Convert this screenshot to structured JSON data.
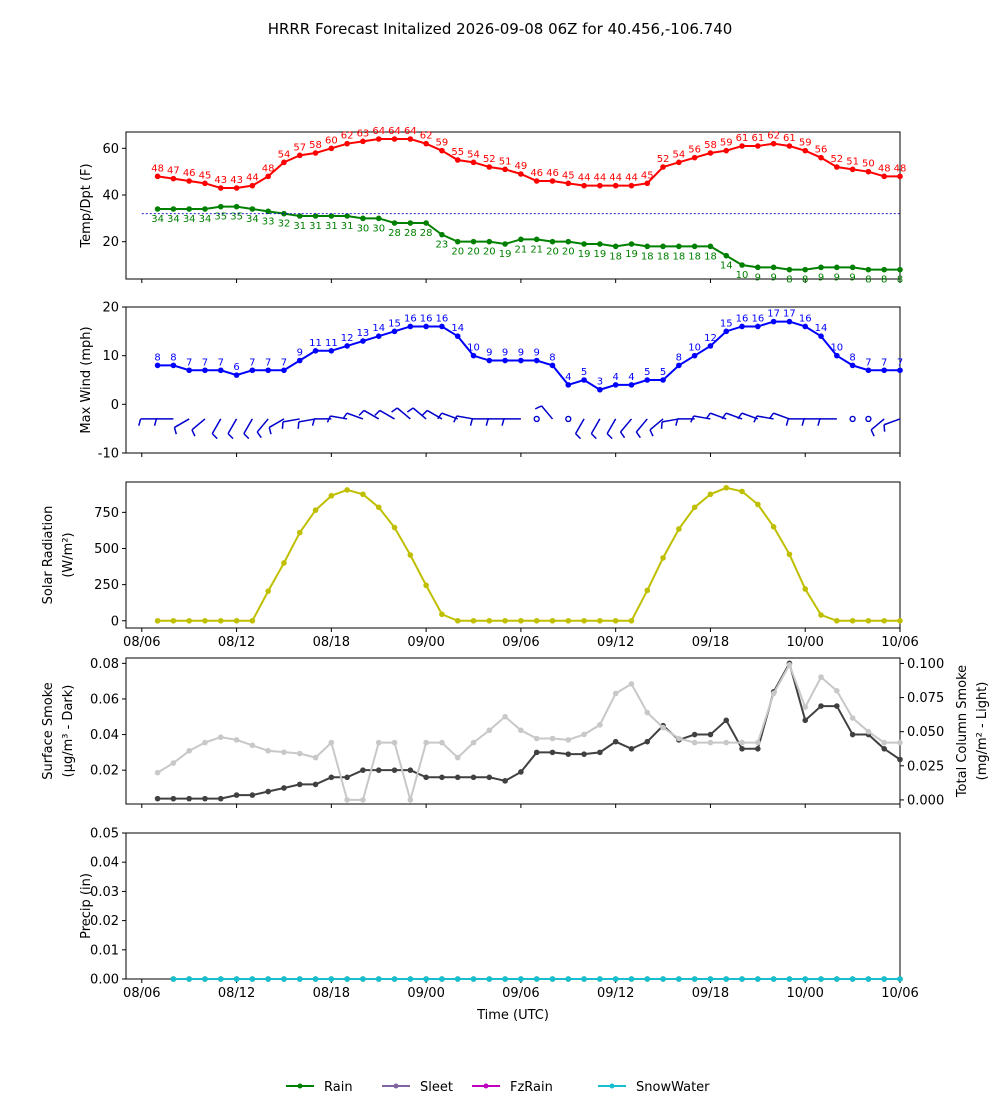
{
  "title": "HRRR Forecast Initalized 2026-09-08 06Z for 40.456,-106.740",
  "x_axis": {
    "tick_labels": [
      "08/06",
      "08/12",
      "08/18",
      "09/00",
      "09/06",
      "09/12",
      "09/18",
      "10/00",
      "10/06"
    ],
    "tick_hours": [
      0,
      6,
      12,
      18,
      24,
      30,
      36,
      42,
      48
    ],
    "label": "Time (UTC)",
    "range_hours": [
      -1,
      48
    ]
  },
  "legend": {
    "placement": "bottom-center",
    "items": [
      {
        "label": "Rain",
        "color": "#008000"
      },
      {
        "label": "Sleet",
        "color": "#8064a2"
      },
      {
        "label": "FzRain",
        "color": "#c000c0"
      },
      {
        "label": "SnowWater",
        "color": "#17becf"
      }
    ]
  },
  "chart_data": [
    {
      "type": "line",
      "ylabel": "Temp/Dpt (F)",
      "ylim": [
        4,
        67
      ],
      "yticks": [
        20,
        40,
        60
      ],
      "x_hours": [
        1,
        2,
        3,
        4,
        5,
        6,
        7,
        8,
        9,
        10,
        11,
        12,
        13,
        14,
        15,
        16,
        17,
        18,
        19,
        20,
        21,
        22,
        23,
        24,
        25,
        26,
        27,
        28,
        29,
        30,
        31,
        32,
        33,
        34,
        35,
        36,
        37,
        38,
        39,
        40,
        41,
        42,
        43,
        44,
        45,
        46,
        47,
        48
      ],
      "series": [
        {
          "name": "Temperature",
          "color": "#ff0000",
          "values": [
            48,
            47,
            46,
            45,
            43,
            43,
            44,
            48,
            54,
            57,
            58,
            60,
            62,
            63,
            64,
            64,
            64,
            62,
            59,
            55,
            54,
            52,
            51,
            49,
            46,
            46,
            45,
            44,
            44,
            44,
            44,
            45,
            52,
            54,
            56,
            58,
            59,
            61,
            61,
            62,
            61,
            59,
            56,
            52,
            51,
            50,
            48,
            48
          ]
        },
        {
          "name": "Dew Point",
          "color": "#008000",
          "values": [
            34,
            34,
            34,
            34,
            35,
            35,
            34,
            33,
            32,
            31,
            31,
            31,
            31,
            30,
            30,
            28,
            28,
            28,
            23,
            20,
            20,
            20,
            19,
            21,
            21,
            20,
            20,
            19,
            19,
            18,
            19,
            18,
            18,
            18,
            18,
            18,
            14,
            10,
            9,
            9,
            8,
            8,
            9,
            9,
            9,
            8,
            8,
            8
          ]
        },
        {
          "name": "Freezing",
          "color": "#0000cc",
          "values": [
            32,
            32
          ],
          "style": "dotted",
          "span_hours": [
            0,
            48
          ]
        }
      ]
    },
    {
      "type": "line",
      "ylabel": "Max Wind (mph)",
      "ylim": [
        -10,
        20
      ],
      "yticks": [
        -10,
        0,
        10,
        20
      ],
      "x_hours": [
        1,
        2,
        3,
        4,
        5,
        6,
        7,
        8,
        9,
        10,
        11,
        12,
        13,
        14,
        15,
        16,
        17,
        18,
        19,
        20,
        21,
        22,
        23,
        24,
        25,
        26,
        27,
        28,
        29,
        30,
        31,
        32,
        33,
        34,
        35,
        36,
        37,
        38,
        39,
        40,
        41,
        42,
        43,
        44,
        45,
        46,
        47,
        48
      ],
      "series": [
        {
          "name": "Max Wind",
          "color": "#0000ff",
          "values": [
            8,
            8,
            7,
            7,
            7,
            6,
            7,
            7,
            7,
            9,
            11,
            11,
            12,
            13,
            14,
            15,
            16,
            16,
            16,
            14,
            10,
            9,
            9,
            9,
            9,
            8,
            4,
            5,
            3,
            4,
            4,
            5,
            5,
            8,
            10,
            12,
            15,
            16,
            16,
            17,
            17,
            16,
            14,
            10,
            8,
            7,
            7,
            7
          ]
        }
      ],
      "wind_barbs": {
        "color": "#0000cc",
        "y": -3,
        "directions_deg": [
          270,
          270,
          240,
          230,
          210,
          210,
          210,
          220,
          240,
          260,
          260,
          270,
          280,
          290,
          300,
          300,
          310,
          310,
          300,
          290,
          280,
          270,
          270,
          270,
          null,
          320,
          null,
          210,
          210,
          210,
          220,
          220,
          230,
          260,
          270,
          280,
          290,
          290,
          290,
          280,
          290,
          270,
          270,
          270,
          null,
          null,
          230,
          250
        ]
      }
    },
    {
      "type": "line",
      "ylabel": "Solar Radiation",
      "ylabel_unit": "(W/m²)",
      "ylim": [
        -50,
        960
      ],
      "yticks": [
        0,
        250,
        500,
        750
      ],
      "x_hours": [
        1,
        2,
        3,
        4,
        5,
        6,
        7,
        8,
        9,
        10,
        11,
        12,
        13,
        14,
        15,
        16,
        17,
        18,
        19,
        20,
        21,
        22,
        23,
        24,
        25,
        26,
        27,
        28,
        29,
        30,
        31,
        32,
        33,
        34,
        35,
        36,
        37,
        38,
        39,
        40,
        41,
        42,
        43,
        44,
        45,
        46,
        47,
        48
      ],
      "series": [
        {
          "name": "Solar Radiation",
          "color": "#bfbf00",
          "values": [
            0,
            0,
            0,
            0,
            0,
            0,
            0,
            205,
            400,
            610,
            765,
            865,
            905,
            875,
            785,
            645,
            455,
            245,
            45,
            0,
            0,
            0,
            0,
            0,
            0,
            0,
            0,
            0,
            0,
            0,
            0,
            210,
            435,
            635,
            785,
            875,
            920,
            895,
            805,
            650,
            460,
            220,
            40,
            0,
            0,
            0,
            0,
            0
          ]
        }
      ]
    },
    {
      "type": "line",
      "ylabel": "Surface Smoke",
      "ylabel_unit": "(μg/m³ - Dark)",
      "ylabel_right": "Total Column Smoke",
      "ylabel_right_unit": "(mg/m² - Light)",
      "ylim": [
        0.001,
        0.083
      ],
      "yticks": [
        0.02,
        0.04,
        0.06,
        0.08
      ],
      "ylim_right": [
        -0.003,
        0.104
      ],
      "yticks_right": [
        0.0,
        0.025,
        0.05,
        0.075,
        0.1
      ],
      "x_hours": [
        1,
        2,
        3,
        4,
        5,
        6,
        7,
        8,
        9,
        10,
        11,
        12,
        13,
        14,
        15,
        16,
        17,
        18,
        19,
        20,
        21,
        22,
        23,
        24,
        25,
        26,
        27,
        28,
        29,
        30,
        31,
        32,
        33,
        34,
        35,
        36,
        37,
        38,
        39,
        40,
        41,
        42,
        43,
        44,
        45,
        46,
        47,
        48
      ],
      "series": [
        {
          "name": "Surface Smoke",
          "color": "#404040",
          "axis": "left",
          "values": [
            0.004,
            0.004,
            0.004,
            0.004,
            0.004,
            0.006,
            0.006,
            0.008,
            0.01,
            0.012,
            0.012,
            0.016,
            0.016,
            0.02,
            0.02,
            0.02,
            0.02,
            0.016,
            0.016,
            0.016,
            0.016,
            0.016,
            0.014,
            0.019,
            0.03,
            0.03,
            0.029,
            0.029,
            0.03,
            0.036,
            0.032,
            0.036,
            0.045,
            0.037,
            0.04,
            0.04,
            0.048,
            0.032,
            0.032,
            0.064,
            0.08,
            0.048,
            0.056,
            0.056,
            0.04,
            0.04,
            0.032,
            0.026
          ]
        },
        {
          "name": "Total Column Smoke",
          "color": "#c8c8c8",
          "axis": "right",
          "values": [
            0.02,
            0.027,
            0.036,
            0.042,
            0.046,
            0.044,
            0.04,
            0.036,
            0.035,
            0.034,
            0.031,
            0.042,
            0.0,
            0.0,
            0.042,
            0.042,
            0.0,
            0.042,
            0.042,
            0.031,
            0.042,
            0.051,
            0.061,
            0.051,
            0.045,
            0.045,
            0.044,
            0.048,
            0.055,
            0.078,
            0.085,
            0.064,
            0.053,
            0.045,
            0.042,
            0.042,
            0.042,
            0.042,
            0.042,
            0.078,
            0.099,
            0.068,
            0.09,
            0.08,
            0.06,
            0.05,
            0.042,
            0.042
          ]
        }
      ]
    },
    {
      "type": "line",
      "ylabel": "Precip (in)",
      "ylim": [
        0,
        0.05
      ],
      "yticks": [
        0.0,
        0.01,
        0.02,
        0.03,
        0.04,
        0.05
      ],
      "tick_format": "2dp",
      "x_hours": [
        2,
        3,
        4,
        5,
        6,
        7,
        8,
        9,
        10,
        11,
        12,
        13,
        14,
        15,
        16,
        17,
        18,
        19,
        20,
        21,
        22,
        23,
        24,
        25,
        26,
        27,
        28,
        29,
        30,
        31,
        32,
        33,
        34,
        35,
        36,
        37,
        38,
        39,
        40,
        41,
        42,
        43,
        44,
        45,
        46,
        47,
        48
      ],
      "series": [
        {
          "name": "Rain",
          "color": "#008000",
          "values": [
            0,
            0,
            0,
            0,
            0,
            0,
            0,
            0,
            0,
            0,
            0,
            0,
            0,
            0,
            0,
            0,
            0,
            0,
            0,
            0,
            0,
            0,
            0,
            0,
            0,
            0,
            0,
            0,
            0,
            0,
            0,
            0,
            0,
            0,
            0,
            0,
            0,
            0,
            0,
            0,
            0,
            0,
            0,
            0,
            0,
            0,
            0
          ]
        },
        {
          "name": "SnowWater",
          "color": "#17becf",
          "values": [
            0,
            0,
            0,
            0,
            0,
            0,
            0,
            0,
            0,
            0,
            0,
            0,
            0,
            0,
            0,
            0,
            0,
            0,
            0,
            0,
            0,
            0,
            0,
            0,
            0,
            0,
            0,
            0,
            0,
            0,
            0,
            0,
            0,
            0,
            0,
            0,
            0,
            0,
            0,
            0,
            0,
            0,
            0,
            0,
            0,
            0,
            0
          ]
        }
      ]
    }
  ]
}
